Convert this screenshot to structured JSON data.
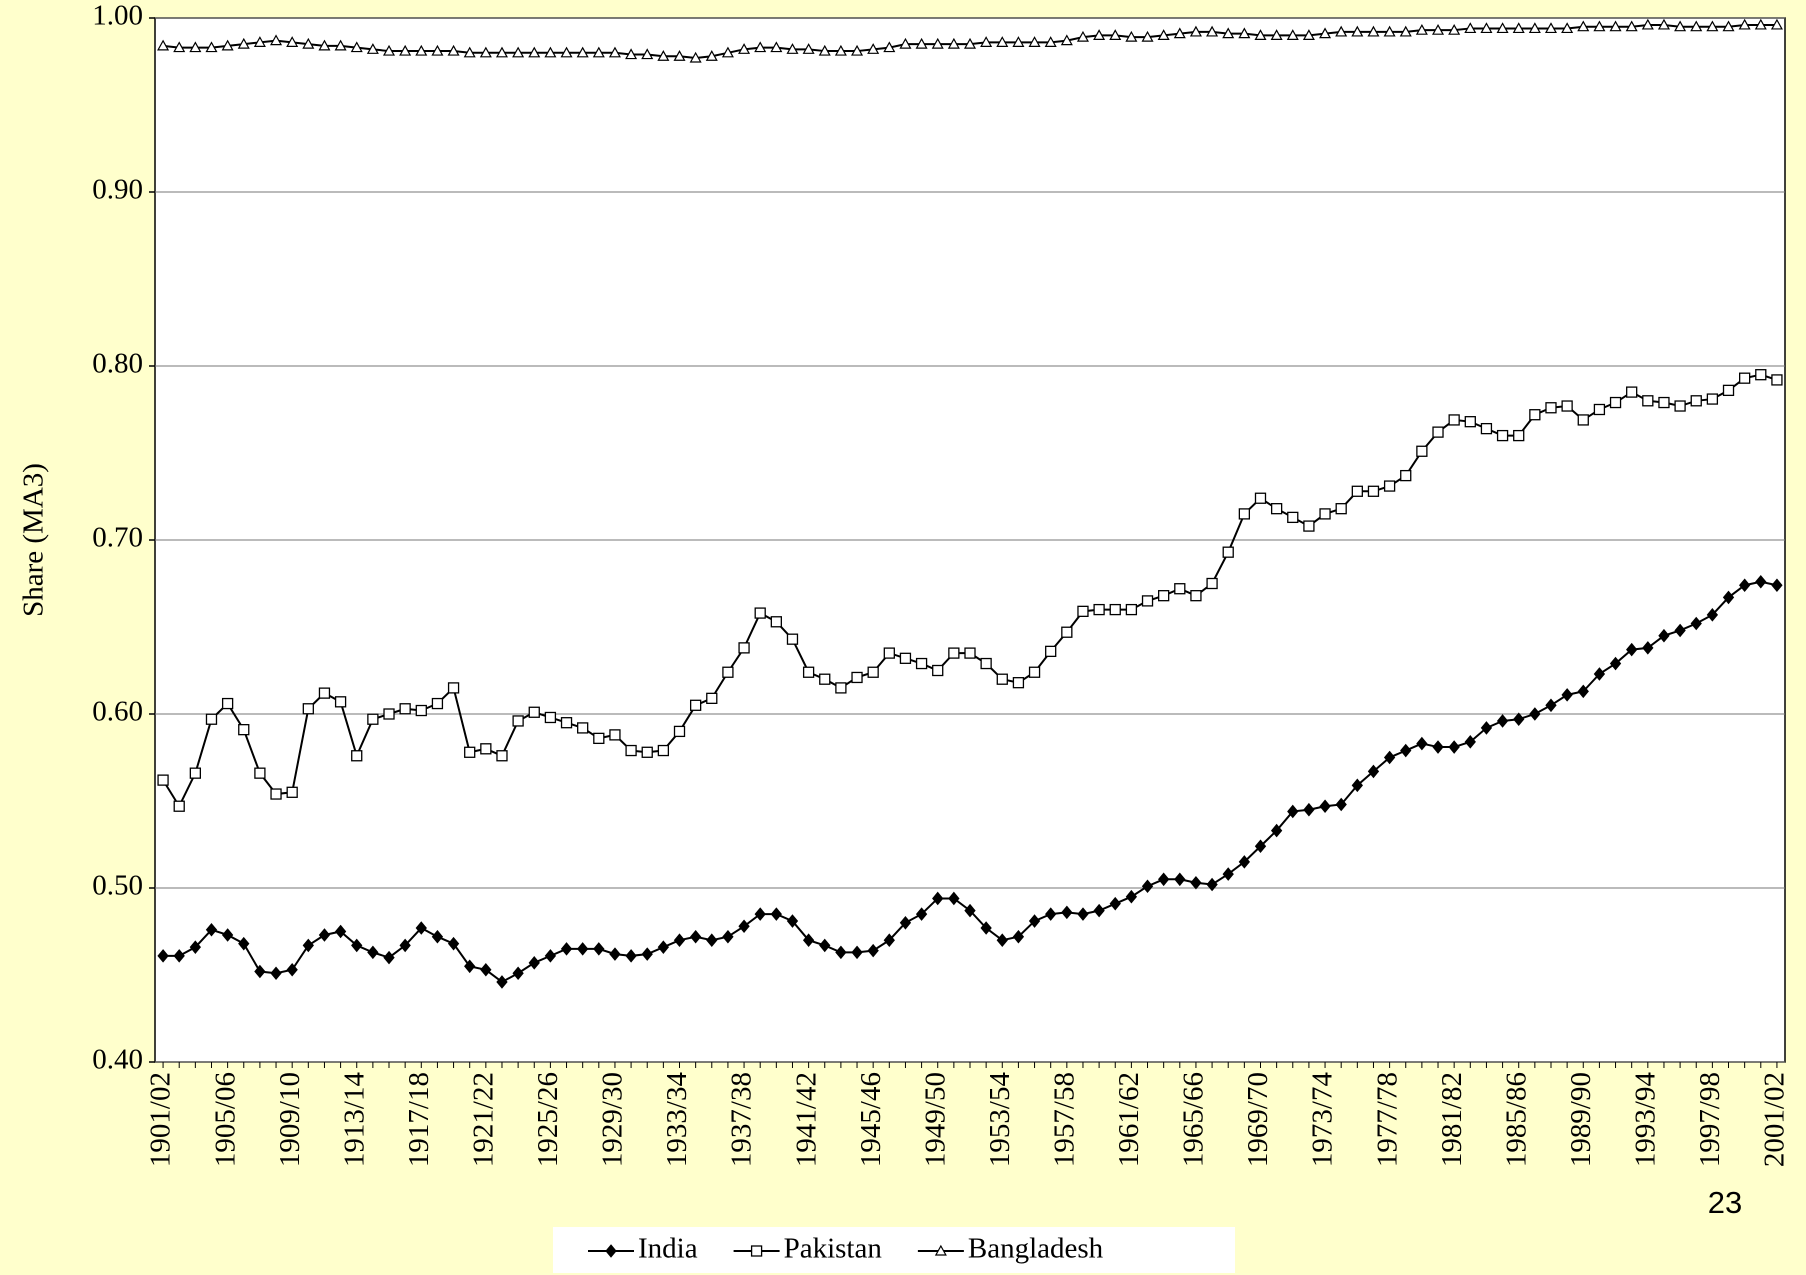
{
  "chart_data": {
    "type": "line",
    "y_label": "Share (MA3)",
    "categories": [
      "1901/02",
      null,
      null,
      null,
      "1905/06",
      null,
      null,
      null,
      "1909/10",
      null,
      null,
      null,
      "1913/14",
      null,
      null,
      null,
      "1917/18",
      null,
      null,
      null,
      "1921/22",
      null,
      null,
      null,
      "1925/26",
      null,
      null,
      null,
      "1929/30",
      null,
      null,
      null,
      "1933/34",
      null,
      null,
      null,
      "1937/38",
      null,
      null,
      null,
      "1941/42",
      null,
      null,
      null,
      "1945/46",
      null,
      null,
      null,
      "1949/50",
      null,
      null,
      null,
      "1953/54",
      null,
      null,
      null,
      "1957/58",
      null,
      null,
      null,
      "1961/62",
      null,
      null,
      null,
      "1965/66",
      null,
      null,
      null,
      "1969/70",
      null,
      null,
      null,
      "1973/74",
      null,
      null,
      null,
      "1977/78",
      null,
      null,
      null,
      "1981/82",
      null,
      null,
      null,
      "1985/86",
      null,
      null,
      null,
      "1989/90",
      null,
      null,
      null,
      "1993/94",
      null,
      null,
      null,
      "1997/98",
      null,
      null,
      null,
      "2001/02"
    ],
    "series": [
      {
        "name": "India",
        "color": "#000000",
        "marker": "diamond",
        "values": [
          0.461,
          0.461,
          0.466,
          0.476,
          0.473,
          0.468,
          0.452,
          0.451,
          0.453,
          0.467,
          0.473,
          0.475,
          0.467,
          0.463,
          0.46,
          0.467,
          0.477,
          0.472,
          0.468,
          0.455,
          0.453,
          0.446,
          0.451,
          0.457,
          0.461,
          0.465,
          0.465,
          0.465,
          0.462,
          0.461,
          0.462,
          0.466,
          0.47,
          0.472,
          0.47,
          0.472,
          0.478,
          0.485,
          0.485,
          0.481,
          0.47,
          0.467,
          0.463,
          0.463,
          0.464,
          0.47,
          0.48,
          0.485,
          0.494,
          0.494,
          0.487,
          0.477,
          0.47,
          0.472,
          0.481,
          0.485,
          0.486,
          0.485,
          0.487,
          0.491,
          0.495,
          0.501,
          0.505,
          0.505,
          0.503,
          0.502,
          0.508,
          0.515,
          0.524,
          0.533,
          0.544,
          0.545,
          0.547,
          0.548,
          0.559,
          0.567,
          0.575,
          0.579,
          0.583,
          0.581,
          0.581,
          0.584,
          0.592,
          0.596,
          0.597,
          0.6,
          0.605,
          0.611,
          0.613,
          0.623,
          0.629,
          0.637,
          0.638,
          0.645,
          0.648,
          0.652,
          0.657,
          0.667,
          0.674,
          0.676,
          0.674
        ]
      },
      {
        "name": "Pakistan",
        "color": "#000000",
        "marker": "square",
        "values": [
          0.562,
          0.547,
          0.566,
          0.597,
          0.606,
          0.591,
          0.566,
          0.554,
          0.555,
          0.603,
          0.612,
          0.607,
          0.576,
          0.597,
          0.6,
          0.603,
          0.602,
          0.606,
          0.615,
          0.578,
          0.58,
          0.576,
          0.596,
          0.601,
          0.598,
          0.595,
          0.592,
          0.586,
          0.588,
          0.579,
          0.578,
          0.579,
          0.59,
          0.605,
          0.609,
          0.624,
          0.638,
          0.658,
          0.653,
          0.643,
          0.624,
          0.62,
          0.615,
          0.621,
          0.624,
          0.635,
          0.632,
          0.629,
          0.625,
          0.635,
          0.635,
          0.629,
          0.62,
          0.618,
          0.624,
          0.636,
          0.647,
          0.659,
          0.66,
          0.66,
          0.66,
          0.665,
          0.668,
          0.672,
          0.668,
          0.675,
          0.693,
          0.715,
          0.724,
          0.718,
          0.713,
          0.708,
          0.715,
          0.718,
          0.728,
          0.728,
          0.731,
          0.737,
          0.751,
          0.762,
          0.769,
          0.768,
          0.764,
          0.76,
          0.76,
          0.772,
          0.776,
          0.777,
          0.769,
          0.775,
          0.779,
          0.785,
          0.78,
          0.779,
          0.777,
          0.78,
          0.781,
          0.786,
          0.793,
          0.795,
          0.792
        ]
      },
      {
        "name": "Bangladesh",
        "color": "#000000",
        "marker": "triangle",
        "values": [
          0.984,
          0.983,
          0.983,
          0.983,
          0.984,
          0.985,
          0.986,
          0.987,
          0.986,
          0.985,
          0.984,
          0.984,
          0.983,
          0.982,
          0.981,
          0.981,
          0.981,
          0.981,
          0.981,
          0.98,
          0.98,
          0.98,
          0.98,
          0.98,
          0.98,
          0.98,
          0.98,
          0.98,
          0.98,
          0.979,
          0.979,
          0.978,
          0.978,
          0.977,
          0.978,
          0.98,
          0.982,
          0.983,
          0.983,
          0.982,
          0.982,
          0.981,
          0.981,
          0.981,
          0.982,
          0.983,
          0.985,
          0.985,
          0.985,
          0.985,
          0.985,
          0.986,
          0.986,
          0.986,
          0.986,
          0.986,
          0.987,
          0.989,
          0.99,
          0.99,
          0.989,
          0.989,
          0.99,
          0.991,
          0.992,
          0.992,
          0.991,
          0.991,
          0.99,
          0.99,
          0.99,
          0.99,
          0.991,
          0.992,
          0.992,
          0.992,
          0.992,
          0.992,
          0.993,
          0.993,
          0.993,
          0.994,
          0.994,
          0.994,
          0.994,
          0.994,
          0.994,
          0.994,
          0.995,
          0.995,
          0.995,
          0.995,
          0.996,
          0.996,
          0.995,
          0.995,
          0.995,
          0.995,
          0.996,
          0.996,
          0.996
        ]
      }
    ],
    "ylim": [
      0.4,
      1.0
    ],
    "yticks": [
      {
        "value": 0.4,
        "label": "0.40"
      },
      {
        "value": 0.5,
        "label": "0.50"
      },
      {
        "value": 0.6,
        "label": "0.60"
      },
      {
        "value": 0.7,
        "label": "0.70"
      },
      {
        "value": 0.8,
        "label": "0.80"
      },
      {
        "value": 0.9,
        "label": "0.90"
      },
      {
        "value": 1.0,
        "label": "1.00"
      }
    ],
    "grid": true,
    "legend": "bottom"
  },
  "slide_number": "23"
}
